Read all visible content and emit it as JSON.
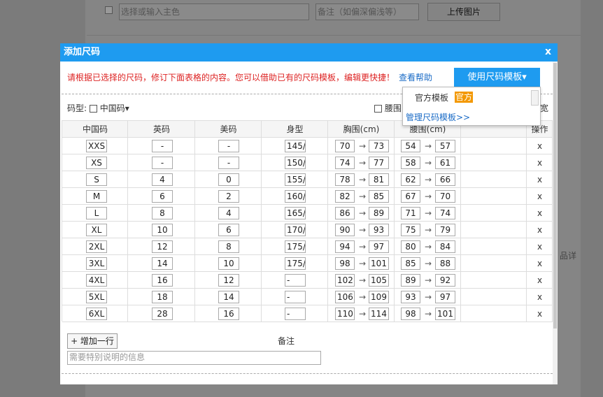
{
  "background": {
    "color_placeholder": "选择或输入主色",
    "remark_placeholder": "备注（如偏深偏浅等）",
    "upload_button": "上传图片",
    "side_text": "品详"
  },
  "dialog": {
    "title": "添加尺码",
    "close": "x",
    "notice": "请根据已选择的尺码，修订下面表格的内容。您可以借助已有的尺码模板，编辑更快捷！",
    "help_link": "查看帮助",
    "template_button": "使用尺码模板▾",
    "size_type_label": "码型:",
    "size_type": "中国码▾",
    "waist_option": "腰围",
    "partial_label": "宽",
    "dropdown": {
      "option": "官方模板",
      "tag": "官方",
      "manage_link": "管理尺码模板>>"
    },
    "table": {
      "headers": [
        "中国码",
        "英码",
        "美码",
        "身型",
        "胸围(cm)",
        "腰围(cm)",
        "操作"
      ],
      "range_arrow": "→",
      "delete_label": "x",
      "rows": [
        [
          "XXS",
          "-",
          "-",
          "145/",
          70,
          73,
          54,
          57
        ],
        [
          "XS",
          "-",
          "-",
          "150/",
          74,
          77,
          58,
          61
        ],
        [
          "S",
          4,
          0,
          "155/",
          78,
          81,
          62,
          66
        ],
        [
          "M",
          6,
          2,
          "160/",
          82,
          85,
          67,
          70
        ],
        [
          "L",
          8,
          4,
          "165/",
          86,
          89,
          71,
          74
        ],
        [
          "XL",
          10,
          6,
          "170/",
          90,
          93,
          75,
          79
        ],
        [
          "2XL",
          12,
          8,
          "175/",
          94,
          97,
          80,
          84
        ],
        [
          "3XL",
          14,
          10,
          "175/",
          98,
          101,
          85,
          88
        ],
        [
          "4XL",
          16,
          12,
          "-",
          102,
          105,
          89,
          92
        ],
        [
          "5XL",
          18,
          14,
          "-",
          106,
          109,
          93,
          97
        ],
        [
          "6XL",
          28,
          16,
          "-",
          110,
          114,
          98,
          101
        ]
      ]
    },
    "add_row": "+ 增加一行",
    "remark_label": "备注",
    "remark_placeholder": "需要特别说明的信息"
  }
}
